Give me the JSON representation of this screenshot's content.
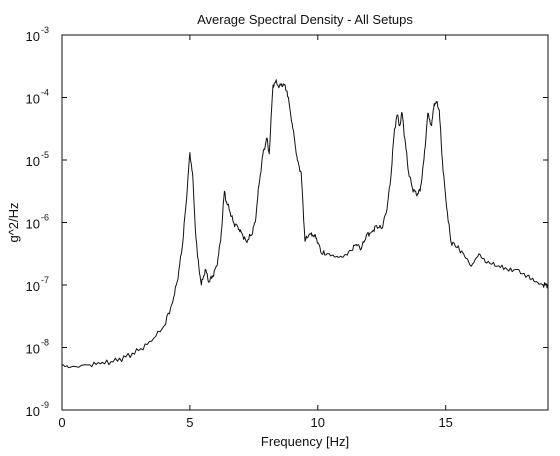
{
  "chart_data": {
    "type": "line",
    "title": "Average Spectral Density - All Setups",
    "xlabel": "Frequency [Hz]",
    "ylabel": "g^2/Hz",
    "yscale": "log",
    "xlim": [
      0,
      19
    ],
    "ylim_exp": [
      -9,
      -3
    ],
    "grid": false,
    "xticks": [
      0,
      5,
      10,
      15
    ],
    "xtick_labels": [
      "0",
      "5",
      "10",
      "15"
    ],
    "yticks_exp": [
      -9,
      -8,
      -7,
      -6,
      -5,
      -4,
      -3
    ],
    "ytick_labels": [
      {
        "base": "10",
        "exp": "-9"
      },
      {
        "base": "10",
        "exp": "-8"
      },
      {
        "base": "10",
        "exp": "-7"
      },
      {
        "base": "10",
        "exp": "-6"
      },
      {
        "base": "10",
        "exp": "-5"
      },
      {
        "base": "10",
        "exp": "-4"
      },
      {
        "base": "10",
        "exp": "-3"
      }
    ],
    "series": [
      {
        "color": "#111111",
        "x": [
          0,
          0.3,
          1.0,
          1.5,
          2.0,
          2.5,
          3.0,
          3.5,
          4.0,
          4.3,
          4.5,
          4.7,
          4.85,
          5.0,
          5.1,
          5.2,
          5.3,
          5.45,
          5.6,
          5.75,
          5.9,
          6.05,
          6.2,
          6.35,
          6.45,
          6.55,
          6.7,
          6.85,
          7.0,
          7.2,
          7.4,
          7.55,
          7.7,
          7.85,
          8.0,
          8.1,
          8.25,
          8.35,
          8.5,
          8.65,
          8.8,
          8.95,
          9.1,
          9.2,
          9.35,
          9.5,
          9.65,
          9.8,
          9.95,
          10.15,
          10.4,
          10.7,
          11.0,
          11.3,
          11.5,
          11.7,
          11.9,
          12.1,
          12.3,
          12.5,
          12.7,
          12.85,
          13.0,
          13.1,
          13.2,
          13.3,
          13.4,
          13.55,
          13.7,
          13.85,
          14.0,
          14.15,
          14.3,
          14.45,
          14.55,
          14.65,
          14.75,
          14.85,
          15.0,
          15.2,
          15.45,
          15.7,
          16.0,
          16.3,
          16.6,
          17.0,
          17.4,
          17.8,
          18.2,
          18.5,
          18.8,
          19.0
        ],
        "y_exp": [
          -8.28,
          -8.32,
          -8.28,
          -8.26,
          -8.23,
          -8.15,
          -8.05,
          -7.9,
          -7.65,
          -7.3,
          -6.95,
          -6.4,
          -5.7,
          -4.88,
          -5.2,
          -6.0,
          -6.55,
          -7.0,
          -6.75,
          -6.95,
          -6.85,
          -6.7,
          -6.3,
          -5.5,
          -5.7,
          -5.8,
          -6.0,
          -6.05,
          -6.15,
          -6.3,
          -6.2,
          -6.0,
          -5.4,
          -4.92,
          -4.65,
          -4.9,
          -3.8,
          -3.75,
          -3.82,
          -3.78,
          -3.9,
          -4.3,
          -4.7,
          -5.0,
          -5.2,
          -6.3,
          -6.2,
          -6.2,
          -6.25,
          -6.5,
          -6.5,
          -6.55,
          -6.55,
          -6.45,
          -6.35,
          -6.42,
          -6.2,
          -6.15,
          -6.05,
          -6.1,
          -5.8,
          -5.3,
          -4.5,
          -4.28,
          -4.45,
          -4.25,
          -4.65,
          -5.2,
          -5.45,
          -5.55,
          -5.5,
          -5.0,
          -4.25,
          -4.45,
          -4.1,
          -4.08,
          -4.2,
          -4.9,
          -5.6,
          -6.3,
          -6.4,
          -6.5,
          -6.7,
          -6.5,
          -6.65,
          -6.7,
          -6.75,
          -6.75,
          -6.85,
          -6.95,
          -7.0,
          -7.0
        ]
      }
    ]
  }
}
